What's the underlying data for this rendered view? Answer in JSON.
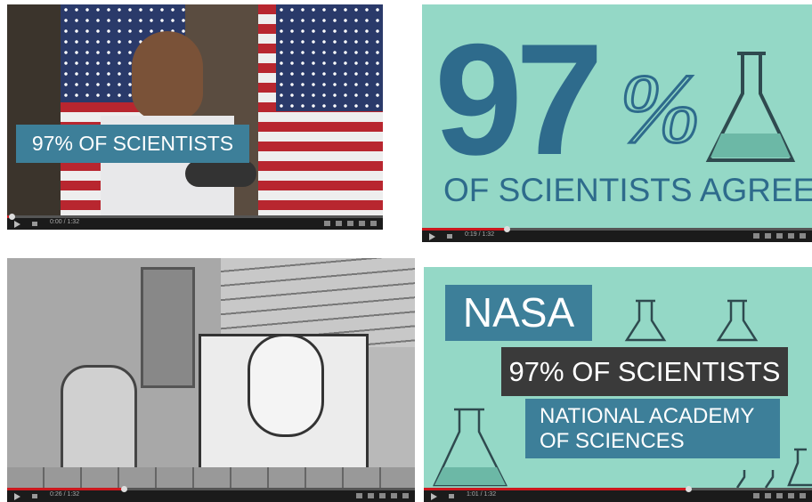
{
  "frames": [
    {
      "caption": "97% OF SCIENTISTS",
      "time": "0:00 / 1:32"
    },
    {
      "big_number": "97",
      "percent": "%",
      "caption": "OF SCIENTISTS AGREE",
      "time": "0:19 / 1:32"
    },
    {
      "time": "0:26 / 1:32"
    },
    {
      "label_1": "NASA",
      "label_2": "97% OF SCIENTISTS",
      "label_3_line_1": "NATIONAL ACADEMY",
      "label_3_line_2": "OF SCIENCES",
      "time": "1:01 / 1:32"
    }
  ]
}
